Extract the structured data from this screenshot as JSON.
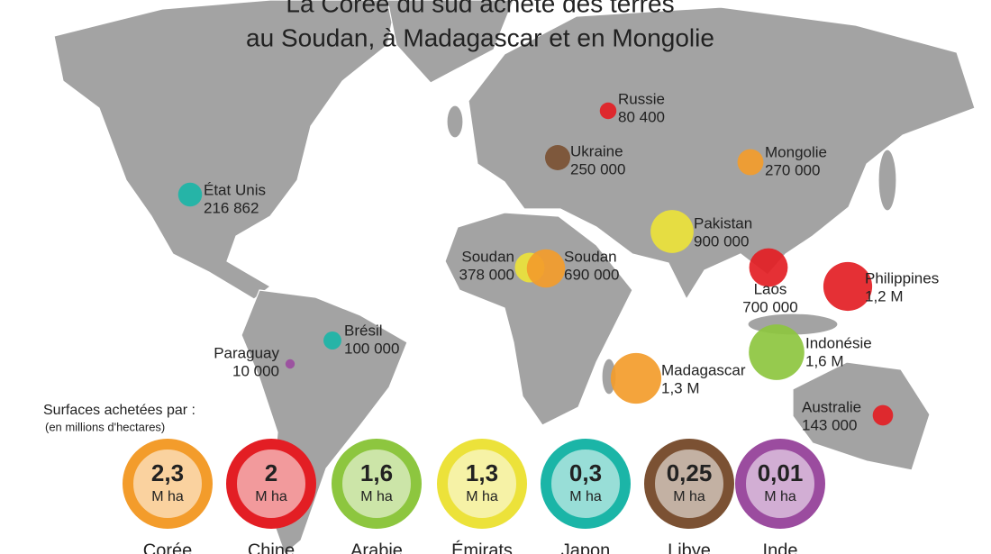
{
  "header": {
    "title_line1": "La Corée du sud achète des terres",
    "title_line2": "au Soudan, à Madagascar et en Mongolie"
  },
  "markers": [
    {
      "name": "Russie",
      "value": 80400,
      "value_label": "80 400",
      "color": "#e31e24"
    },
    {
      "name": "Ukraine",
      "value": 250000,
      "value_label": "250 000",
      "color": "#7b5133"
    },
    {
      "name": "Mongolie",
      "value": 270000,
      "value_label": "270 000",
      "color": "#f39c2b"
    },
    {
      "name": "État Unis",
      "value": 216862,
      "value_label": "216 862",
      "color": "#1bb5a7"
    },
    {
      "name": "Pakistan",
      "value": 900000,
      "value_label": "900 000",
      "color": "#ece23a"
    },
    {
      "name": "Soudan",
      "value": 378000,
      "value_label": "378 000",
      "color": "#ece23a"
    },
    {
      "name": "Soudan",
      "value": 690000,
      "value_label": "690 000",
      "color": "#f39c2b"
    },
    {
      "name": "Laos",
      "value": 700000,
      "value_label": "700 000",
      "color": "#e31e24"
    },
    {
      "name": "Philippines",
      "value": 1200000,
      "value_label": "1,2 M",
      "color": "#e31e24"
    },
    {
      "name": "Indonésie",
      "value": 1600000,
      "value_label": "1,6 M",
      "color": "#8dc63f"
    },
    {
      "name": "Madagascar",
      "value": 1300000,
      "value_label": "1,3 M",
      "color": "#f39c2b"
    },
    {
      "name": "Australie",
      "value": 143000,
      "value_label": "143 000",
      "color": "#e31e24"
    },
    {
      "name": "Brésil",
      "value": 100000,
      "value_label": "100 000",
      "color": "#1bb5a7"
    },
    {
      "name": "Paraguay",
      "value": 10000,
      "value_label": "10 000",
      "color": "#9b4c9f"
    }
  ],
  "legend": {
    "title": "Surfaces achetées par :",
    "subtitle": "(en millions d'hectares)",
    "items": [
      {
        "value": 2.3,
        "value_label": "2,3",
        "unit": "M ha",
        "country": "Corée",
        "color": "#f39c2b"
      },
      {
        "value": 2,
        "value_label": "2",
        "unit": "M ha",
        "country": "Chine",
        "color": "#e31e24"
      },
      {
        "value": 1.6,
        "value_label": "1,6",
        "unit": "M ha",
        "country": "Arabie",
        "color": "#8dc63f"
      },
      {
        "value": 1.3,
        "value_label": "1,3",
        "unit": "M ha",
        "country": "Émirats",
        "color": "#ece23a"
      },
      {
        "value": 0.3,
        "value_label": "0,3",
        "unit": "M ha",
        "country": "Japon",
        "color": "#1bb5a7"
      },
      {
        "value": 0.25,
        "value_label": "0,25",
        "unit": "M ha",
        "country": "Libye",
        "color": "#7b5133"
      },
      {
        "value": 0.01,
        "value_label": "0,01",
        "unit": "M ha",
        "country": "Inde",
        "color": "#9b4c9f"
      }
    ]
  }
}
